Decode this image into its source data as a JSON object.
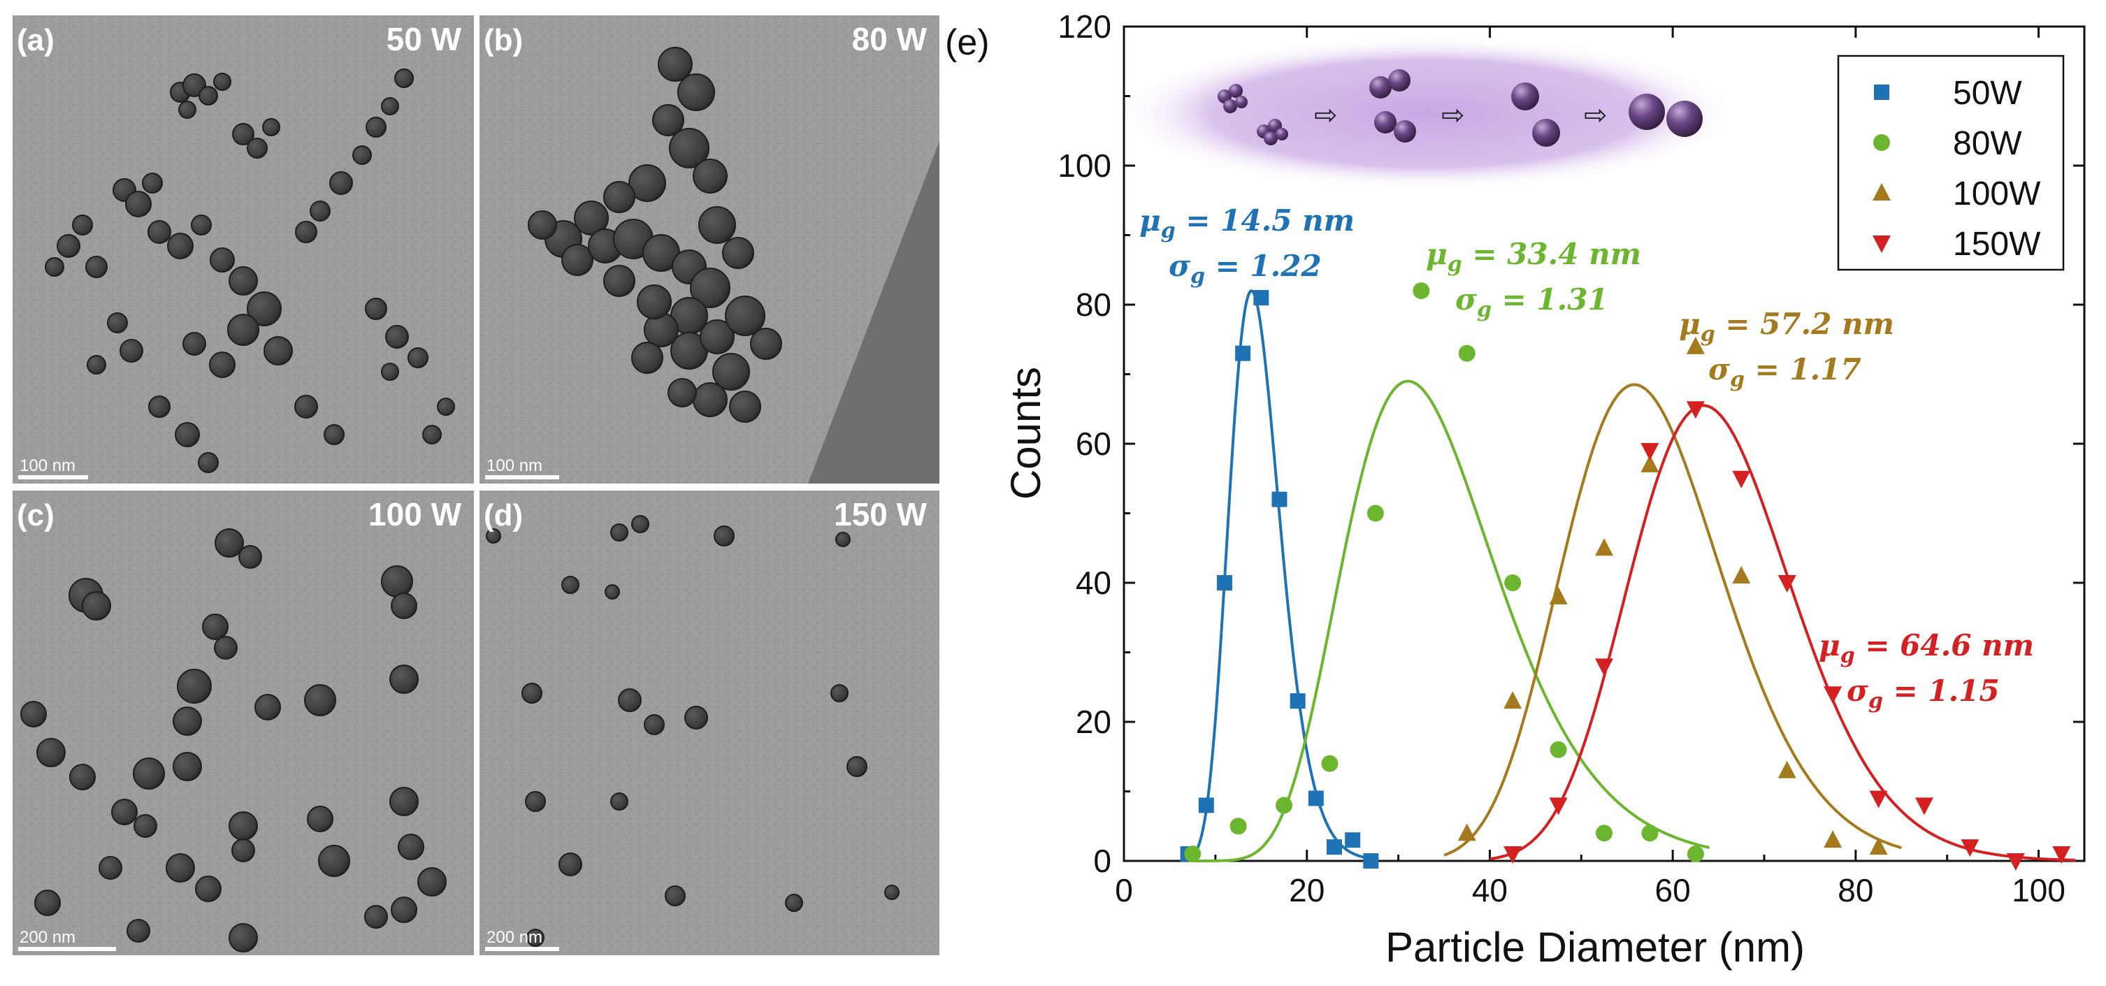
{
  "panels": [
    {
      "letter": "(a)",
      "power": "50 W",
      "scalebar": "100 nm"
    },
    {
      "letter": "(b)",
      "power": "80 W",
      "scalebar": "100 nm"
    },
    {
      "letter": "(c)",
      "power": "100 W",
      "scalebar": "200 nm"
    },
    {
      "letter": "(d)",
      "power": "150 W",
      "scalebar": "200 nm"
    }
  ],
  "chart_panel_letter": "(e)",
  "colors": {
    "blue": "#1f72b4",
    "green": "#6cb52e",
    "gold": "#a47a1c",
    "red": "#d42020",
    "inset": "#b48ed2",
    "particle": "#5a3a6e"
  },
  "chart_data": {
    "type": "scatter",
    "xlabel": "Particle Diameter (nm)",
    "ylabel": "Counts",
    "xlim": [
      0,
      105
    ],
    "ylim": [
      0,
      120
    ],
    "xticks": [
      0,
      20,
      40,
      60,
      80,
      100
    ],
    "yticks": [
      0,
      20,
      40,
      60,
      80,
      100,
      120
    ],
    "legend_position": "top-right",
    "series": [
      {
        "name": "50W",
        "marker": "square",
        "color": "#1f72b4",
        "x": [
          7,
          9,
          11,
          13,
          15,
          17,
          19,
          21,
          23,
          25,
          27
        ],
        "y": [
          1,
          8,
          40,
          73,
          81,
          52,
          23,
          9,
          2,
          3,
          0
        ],
        "fit": {
          "median": 14.5,
          "gsd": 1.22,
          "peak": 82,
          "range": [
            7,
            27
          ]
        },
        "annotation": {
          "mu": "14.5 nm",
          "sigma": "1.22"
        }
      },
      {
        "name": "80W",
        "marker": "circle",
        "color": "#6cb52e",
        "x": [
          7.5,
          12.5,
          17.5,
          22.5,
          27.5,
          32.5,
          37.5,
          42.5,
          47.5,
          52.5,
          57.5,
          62.5
        ],
        "y": [
          1,
          5,
          8,
          14,
          50,
          82,
          73,
          40,
          16,
          4,
          4,
          1
        ],
        "fit": {
          "median": 33.4,
          "gsd": 1.31,
          "peak": 69,
          "range": [
            7.5,
            64
          ]
        },
        "annotation": {
          "mu": "33.4 nm",
          "sigma": "1.31"
        }
      },
      {
        "name": "100W",
        "marker": "triangle-up",
        "color": "#a47a1c",
        "x": [
          37.5,
          42.5,
          47.5,
          52.5,
          57.5,
          62.5,
          67.5,
          72.5,
          77.5,
          82.5
        ],
        "y": [
          4,
          23,
          38,
          45,
          57,
          74,
          41,
          13,
          3,
          2
        ],
        "fit": {
          "median": 57.2,
          "gsd": 1.17,
          "peak": 68.5,
          "range": [
            35,
            85
          ]
        },
        "annotation": {
          "mu": "57.2 nm",
          "sigma": "1.17"
        }
      },
      {
        "name": "150W",
        "marker": "triangle-down",
        "color": "#d42020",
        "x": [
          42.5,
          47.5,
          52.5,
          57.5,
          62.5,
          67.5,
          72.5,
          77.5,
          82.5,
          87.5,
          92.5,
          97.5,
          102.5
        ],
        "y": [
          1,
          8,
          28,
          59,
          65,
          55,
          40,
          24,
          9,
          8,
          2,
          0,
          1
        ],
        "fit": {
          "median": 64.6,
          "gsd": 1.15,
          "peak": 65.5,
          "range": [
            40,
            104
          ]
        },
        "annotation": {
          "mu": "64.6 nm",
          "sigma": "1.15"
        }
      }
    ]
  }
}
